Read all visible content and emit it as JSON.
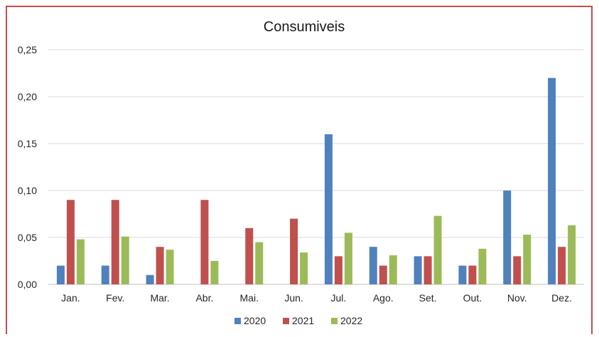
{
  "chart_data": {
    "type": "bar",
    "title": "Consumiveis",
    "categories": [
      "Jan.",
      "Fev.",
      "Mar.",
      "Abr.",
      "Mai.",
      "Jun.",
      "Jul.",
      "Ago.",
      "Set.",
      "Out.",
      "Nov.",
      "Dez."
    ],
    "series": [
      {
        "name": "2020",
        "color": "#4f81bd",
        "values": [
          0.02,
          0.02,
          0.01,
          0,
          0,
          0,
          0.16,
          0.04,
          0.03,
          0.02,
          0.1,
          0.22
        ]
      },
      {
        "name": "2021",
        "color": "#c0504d",
        "values": [
          0.09,
          0.09,
          0.04,
          0.09,
          0.06,
          0.07,
          0.03,
          0.02,
          0.03,
          0.02,
          0.03,
          0.04
        ]
      },
      {
        "name": "2022",
        "color": "#9bbb59",
        "values": [
          0.048,
          0.051,
          0.037,
          0.025,
          0.045,
          0.034,
          0.055,
          0.031,
          0.073,
          0.038,
          0.053,
          0.063
        ]
      }
    ],
    "ylim": [
      0,
      0.25
    ],
    "yticks": [
      "0,00",
      "0,05",
      "0,10",
      "0,15",
      "0,20",
      "0,25"
    ],
    "grid": true,
    "legend_position": "bottom",
    "frame_color": "#c0504d",
    "xlabel": "",
    "ylabel": ""
  }
}
